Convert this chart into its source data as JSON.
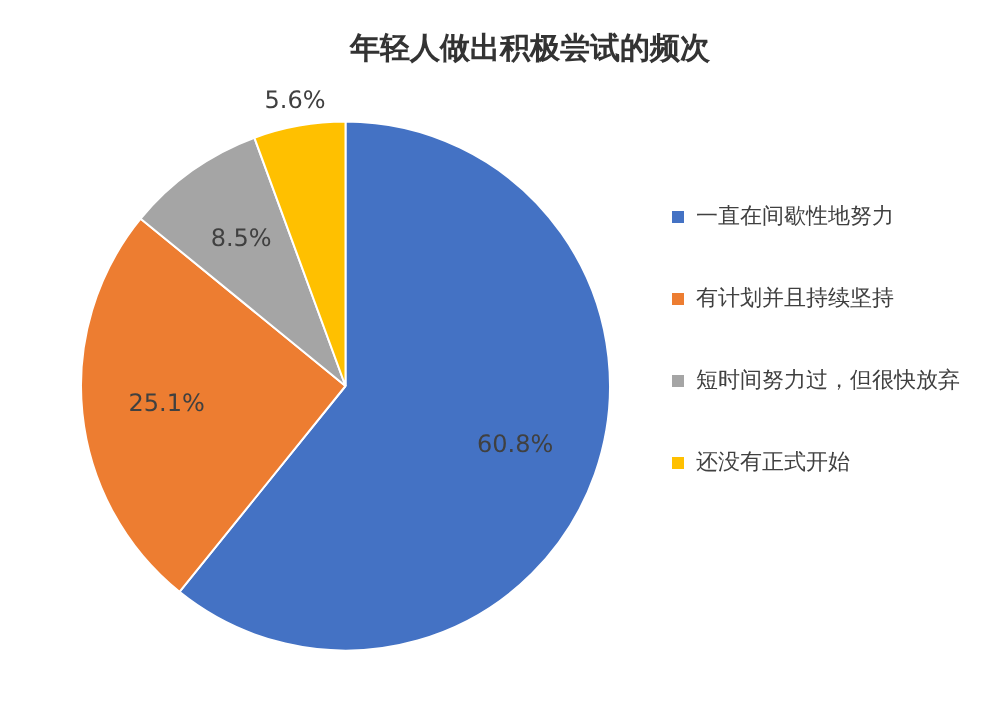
{
  "chart_data": {
    "type": "pie",
    "title": "年轻人做出积极尝试的频次",
    "categories": [
      "一直在间歇性地努力",
      "有计划并且持续坚持",
      "短时间努力过，但很快放弃",
      "还没有正式开始"
    ],
    "values": [
      60.8,
      25.1,
      8.5,
      5.6
    ],
    "value_labels": [
      "60.8%",
      "25.1%",
      "8.5%",
      "5.6%"
    ],
    "colors": [
      "#4472c4",
      "#ed7d31",
      "#a5a5a5",
      "#ffc000"
    ],
    "legend": "right"
  }
}
